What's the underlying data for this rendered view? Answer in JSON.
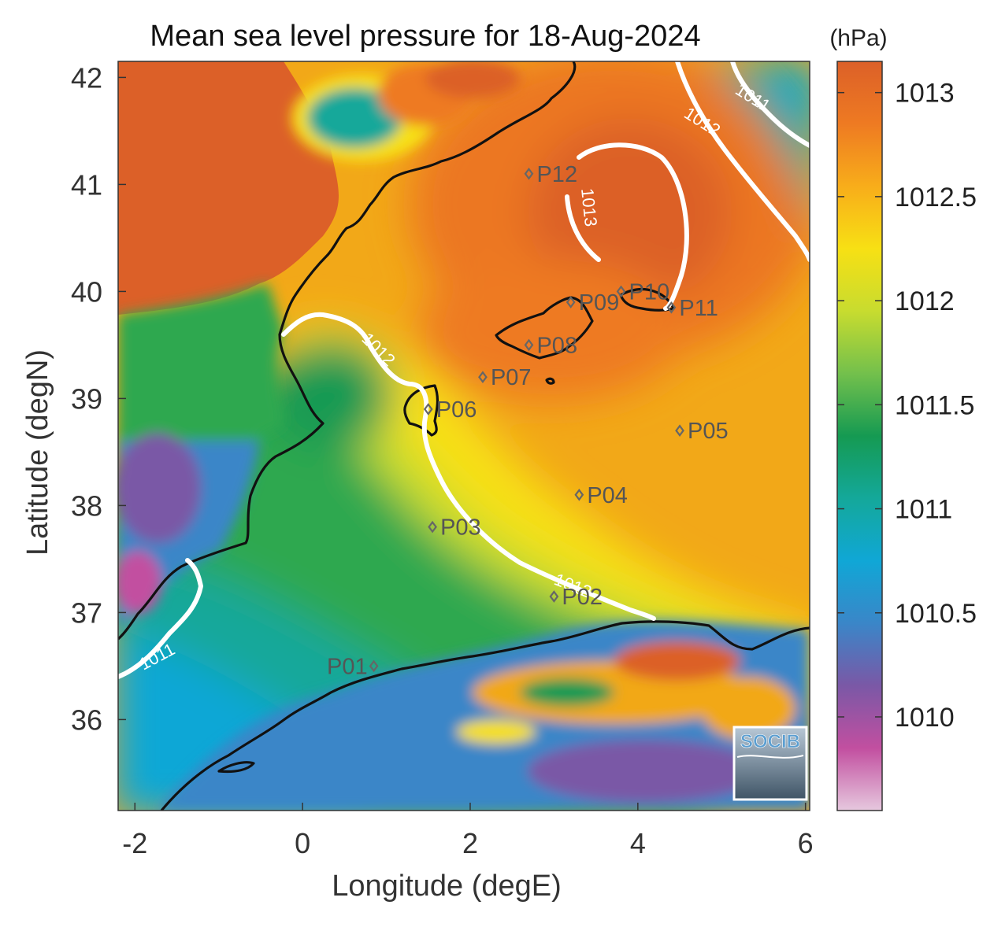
{
  "title": "Mean sea level pressure for 18-Aug-2024",
  "x_axis": {
    "label": "Longitude (degE)",
    "range": [
      -2.2,
      6.05
    ],
    "ticks": [
      -2,
      0,
      2,
      4,
      6
    ],
    "tick_labels": [
      "-2",
      "0",
      "2",
      "4",
      "6"
    ]
  },
  "y_axis": {
    "label": "Latitude (degN)",
    "range": [
      35.15,
      42.15
    ],
    "ticks": [
      36,
      37,
      38,
      39,
      40,
      41,
      42
    ],
    "tick_labels": [
      "36",
      "37",
      "38",
      "39",
      "40",
      "41",
      "42"
    ]
  },
  "colorbar": {
    "unit": "(hPa)",
    "range": [
      1009.55,
      1013.15
    ],
    "ticks": [
      1010,
      1010.5,
      1011,
      1011.5,
      1012,
      1012.5,
      1013
    ],
    "tick_labels": [
      "1010",
      "1010.5",
      "1011",
      "1011.5",
      "1012",
      "1012.5",
      "1013"
    ],
    "colormap": [
      "#e6c8de",
      "#c24fa0",
      "#7a58a6",
      "#3a86c8",
      "#10a7d6",
      "#14a89a",
      "#159a52",
      "#73c04c",
      "#c8dc2f",
      "#f7e014",
      "#f8ad1a",
      "#ee7a22",
      "#dc6028"
    ]
  },
  "points": [
    {
      "name": "P01",
      "lon": 0.85,
      "lat": 36.5
    },
    {
      "name": "P02",
      "lon": 3.0,
      "lat": 37.15
    },
    {
      "name": "P03",
      "lon": 1.55,
      "lat": 37.8
    },
    {
      "name": "P04",
      "lon": 3.3,
      "lat": 38.1
    },
    {
      "name": "P05",
      "lon": 4.5,
      "lat": 38.7
    },
    {
      "name": "P06",
      "lon": 1.5,
      "lat": 38.9
    },
    {
      "name": "P07",
      "lon": 2.15,
      "lat": 39.2
    },
    {
      "name": "P08",
      "lon": 2.7,
      "lat": 39.5
    },
    {
      "name": "P09",
      "lon": 3.2,
      "lat": 39.9
    },
    {
      "name": "P10",
      "lon": 3.8,
      "lat": 40.0
    },
    {
      "name": "P11",
      "lon": 4.4,
      "lat": 39.85
    },
    {
      "name": "P12",
      "lon": 2.7,
      "lat": 41.1
    }
  ],
  "contour_labels": [
    "1011",
    "1011",
    "1012",
    "1012",
    "1013",
    "1012"
  ],
  "logo": {
    "text": "SOCIB"
  },
  "colors": {
    "coastline": "#111111",
    "contour": "#ffffff",
    "marker": "#666666"
  }
}
